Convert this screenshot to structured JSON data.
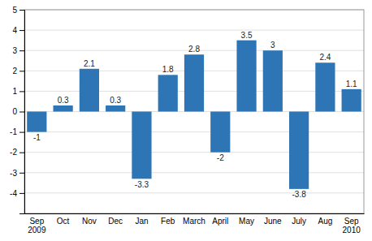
{
  "chart_data": {
    "type": "bar",
    "categories": [
      "Sep\n2009",
      "Oct",
      "Nov",
      "Dec",
      "Jan",
      "Feb",
      "March",
      "April",
      "May",
      "June",
      "July",
      "Aug",
      "Sep\n2010"
    ],
    "values": [
      -1.0,
      0.3,
      2.1,
      0.3,
      -3.3,
      1.8,
      2.8,
      -2.0,
      3.5,
      3.0,
      -3.8,
      2.4,
      1.1
    ],
    "color": "#2E75B6",
    "ylim": [
      -5,
      5
    ],
    "yticks": [
      -4,
      -3,
      -2,
      -1,
      0,
      1,
      2,
      3,
      4,
      5
    ],
    "grid": true,
    "data_labels": true
  }
}
